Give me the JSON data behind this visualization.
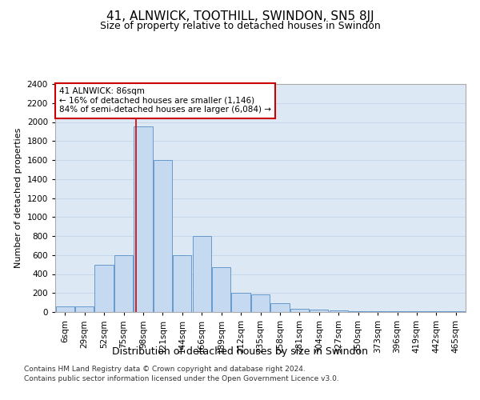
{
  "title": "41, ALNWICK, TOOTHILL, SWINDON, SN5 8JJ",
  "subtitle": "Size of property relative to detached houses in Swindon",
  "xlabel": "Distribution of detached houses by size in Swindon",
  "ylabel": "Number of detached properties",
  "categories": [
    "6sqm",
    "29sqm",
    "52sqm",
    "75sqm",
    "98sqm",
    "121sqm",
    "144sqm",
    "166sqm",
    "189sqm",
    "212sqm",
    "235sqm",
    "258sqm",
    "281sqm",
    "304sqm",
    "327sqm",
    "350sqm",
    "373sqm",
    "396sqm",
    "419sqm",
    "442sqm",
    "465sqm"
  ],
  "values": [
    55,
    55,
    500,
    595,
    1950,
    1600,
    600,
    800,
    475,
    200,
    185,
    90,
    30,
    28,
    20,
    10,
    8,
    5,
    5,
    5,
    5
  ],
  "bar_color": "#c5d9f0",
  "bar_edge_color": "#6699cc",
  "bar_edge_width": 0.7,
  "vline_pos": 3.62,
  "vline_color": "#cc0000",
  "annotation_text": "41 ALNWICK: 86sqm\n← 16% of detached houses are smaller (1,146)\n84% of semi-detached houses are larger (6,084) →",
  "annotation_fontsize": 7.5,
  "annotation_box_color": "#cc0000",
  "annotation_text_color": "#000000",
  "ylim": [
    0,
    2400
  ],
  "yticks": [
    0,
    200,
    400,
    600,
    800,
    1000,
    1200,
    1400,
    1600,
    1800,
    2000,
    2200,
    2400
  ],
  "grid_color": "#c8d8eb",
  "plot_bg_color": "#dce9f5",
  "title_fontsize": 11,
  "subtitle_fontsize": 9,
  "xlabel_fontsize": 9,
  "ylabel_fontsize": 8,
  "tick_fontsize": 7.5,
  "footer_line1": "Contains HM Land Registry data © Crown copyright and database right 2024.",
  "footer_line2": "Contains public sector information licensed under the Open Government Licence v3.0.",
  "footer_fontsize": 6.5
}
